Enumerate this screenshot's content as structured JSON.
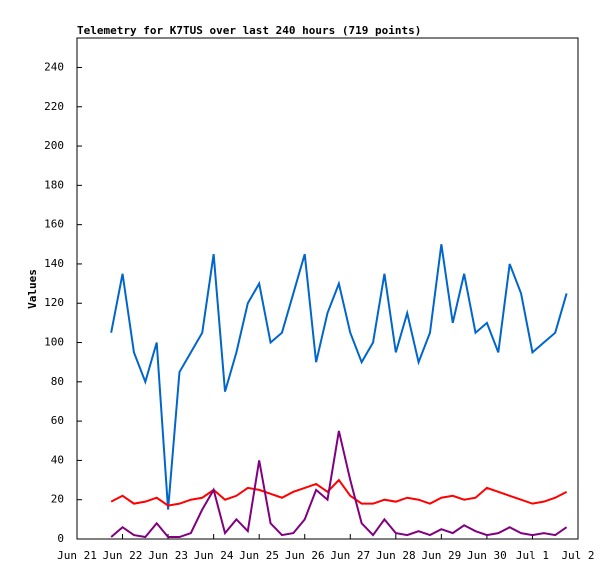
{
  "chart_data": {
    "type": "line",
    "title": "Telemetry for K7TUS over last 240 hours (719 points)",
    "ylabel": "Values",
    "x": [
      0.75,
      1.0,
      1.25,
      1.5,
      1.75,
      2.0,
      2.25,
      2.5,
      2.75,
      3.0,
      3.25,
      3.5,
      3.75,
      4.0,
      4.25,
      4.5,
      4.75,
      5.0,
      5.25,
      5.5,
      5.75,
      6.0,
      6.25,
      6.5,
      6.75,
      7.0,
      7.25,
      7.5,
      7.75,
      8.0,
      8.25,
      8.5,
      8.75,
      9.0,
      9.25,
      9.5,
      9.75,
      10.0,
      10.25,
      10.5,
      10.75
    ],
    "series": [
      {
        "color": "#0066cc",
        "values": [
          105,
          135,
          95,
          80,
          100,
          15,
          85,
          95,
          105,
          145,
          75,
          95,
          120,
          130,
          100,
          105,
          125,
          145,
          90,
          115,
          130,
          105,
          90,
          100,
          135,
          95,
          115,
          90,
          105,
          150,
          110,
          135,
          105,
          110,
          95,
          140,
          125,
          95,
          100,
          105,
          125
        ]
      },
      {
        "color": "#ff0000",
        "values": [
          19,
          22,
          18,
          19,
          21,
          17,
          18,
          20,
          21,
          25,
          20,
          22,
          26,
          25,
          23,
          21,
          24,
          26,
          28,
          24,
          30,
          22,
          18,
          18,
          20,
          19,
          21,
          20,
          18,
          21,
          22,
          20,
          21,
          26,
          24,
          22,
          20,
          18,
          19,
          21,
          24
        ]
      },
      {
        "color": "#800080",
        "values": [
          1,
          6,
          2,
          1,
          8,
          1,
          1,
          3,
          15,
          25,
          3,
          10,
          4,
          40,
          8,
          2,
          3,
          10,
          25,
          20,
          55,
          30,
          8,
          2,
          10,
          3,
          2,
          4,
          2,
          5,
          3,
          7,
          4,
          2,
          3,
          6,
          3,
          2,
          3,
          2,
          6
        ]
      }
    ],
    "xlim": [
      0,
      11
    ],
    "xticks": [
      {
        "value": 0,
        "label": "Jun 21"
      },
      {
        "value": 1,
        "label": "Jun 22"
      },
      {
        "value": 2,
        "label": "Jun 23"
      },
      {
        "value": 3,
        "label": "Jun 24"
      },
      {
        "value": 4,
        "label": "Jun 25"
      },
      {
        "value": 5,
        "label": "Jun 26"
      },
      {
        "value": 6,
        "label": "Jun 27"
      },
      {
        "value": 7,
        "label": "Jun 28"
      },
      {
        "value": 8,
        "label": "Jun 29"
      },
      {
        "value": 9,
        "label": "Jun 30"
      },
      {
        "value": 10,
        "label": "Jul 1"
      },
      {
        "value": 11,
        "label": "Jul 2"
      }
    ],
    "ylim": [
      0,
      255
    ],
    "yticks": [
      0,
      20,
      40,
      60,
      80,
      100,
      120,
      140,
      160,
      180,
      200,
      220,
      240
    ]
  }
}
